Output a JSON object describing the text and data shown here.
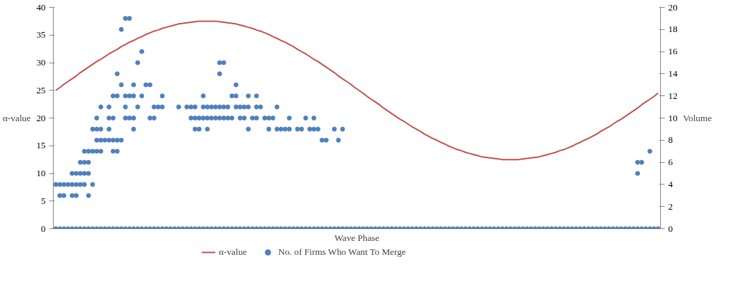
{
  "chart_data": {
    "type": "scatter",
    "xlabel": "Wave Phase",
    "ylabel": "α-value",
    "y2label": "Volume",
    "categories": [
      null,
      null,
      null,
      null,
      null,
      null,
      null,
      null,
      null,
      null,
      null,
      null,
      null,
      null,
      null,
      null,
      null,
      null,
      null,
      null,
      null,
      null,
      null,
      null,
      null,
      null,
      null,
      null,
      null,
      null,
      null,
      null,
      null,
      null,
      null,
      null,
      null,
      null,
      null,
      null,
      null,
      null,
      null,
      null,
      null,
      null,
      null,
      null,
      null,
      null,
      null,
      null,
      null,
      null,
      null,
      null,
      null,
      null,
      null,
      null,
      null,
      null,
      null,
      null,
      null,
      null,
      null,
      null,
      null,
      null,
      null,
      null,
      null,
      null,
      null,
      null,
      null,
      null,
      null,
      null,
      null,
      null,
      null,
      null,
      null,
      null,
      null,
      null,
      null,
      null,
      null,
      null,
      null,
      null,
      null,
      null,
      null,
      null,
      null,
      null,
      null,
      null,
      null,
      null,
      null,
      null,
      null,
      null,
      null,
      null,
      null,
      null,
      null,
      null,
      null,
      null,
      null,
      null,
      null,
      null,
      null,
      null,
      null,
      null,
      null,
      null,
      null,
      null,
      null,
      null,
      null,
      null,
      null,
      null,
      null,
      null,
      null,
      null,
      null,
      null,
      null,
      null,
      null,
      null,
      null,
      null,
      null,
      null
    ],
    "ylim": [
      0,
      40
    ],
    "yticks": [
      0,
      5,
      10,
      15,
      20,
      25,
      30,
      35,
      40
    ],
    "y2lim": [
      0,
      20
    ],
    "y2ticks": [
      0,
      2,
      4,
      6,
      8,
      10,
      12,
      14,
      16,
      18,
      20
    ],
    "grid": false,
    "legend": "bottom",
    "marker": "circle",
    "line_style": "solid",
    "series": [
      {
        "name": "α-value",
        "type": "line",
        "marker": "none",
        "color": "#c0504d",
        "values": [
          25.0,
          25.5,
          26.1,
          26.6,
          27.1,
          27.6,
          28.2,
          28.7,
          29.2,
          29.7,
          30.2,
          30.6,
          31.1,
          31.6,
          32.0,
          32.4,
          32.9,
          33.3,
          33.7,
          34.0,
          34.4,
          34.7,
          35.1,
          35.4,
          35.7,
          35.9,
          36.2,
          36.4,
          36.6,
          36.8,
          37.0,
          37.1,
          37.2,
          37.3,
          37.4,
          37.5,
          37.5,
          37.5,
          37.5,
          37.5,
          37.4,
          37.3,
          37.2,
          37.1,
          37.0,
          36.8,
          36.6,
          36.4,
          36.2,
          35.9,
          35.7,
          35.4,
          35.1,
          34.7,
          34.4,
          34.0,
          33.7,
          33.3,
          32.9,
          32.4,
          32.0,
          31.6,
          31.1,
          30.6,
          30.2,
          29.7,
          29.2,
          28.7,
          28.2,
          27.6,
          27.1,
          26.6,
          26.1,
          25.5,
          25.0,
          24.5,
          23.9,
          23.4,
          22.9,
          22.4,
          21.8,
          21.3,
          20.8,
          20.3,
          19.8,
          19.4,
          18.9,
          18.4,
          18.0,
          17.6,
          17.1,
          16.7,
          16.3,
          16.0,
          15.6,
          15.3,
          14.9,
          14.6,
          14.3,
          14.1,
          13.8,
          13.6,
          13.4,
          13.2,
          13.0,
          12.9,
          12.8,
          12.7,
          12.6,
          12.5,
          12.5,
          12.5,
          12.5,
          12.5,
          12.6,
          12.7,
          12.8,
          12.9,
          13.0,
          13.2,
          13.4,
          13.6,
          13.8,
          14.1,
          14.3,
          14.6,
          14.9,
          15.3,
          15.6,
          16.0,
          16.3,
          16.7,
          17.1,
          17.6,
          18.0,
          18.4,
          18.9,
          19.4,
          19.8,
          20.3,
          20.8,
          21.3,
          21.8,
          22.4,
          22.9,
          23.4,
          23.9,
          24.5
        ]
      },
      {
        "name": "No. of Firms Who Want To Merge",
        "axis": "y2",
        "color": "#4f81bd",
        "values": [
          0,
          0,
          0,
          0,
          0,
          0,
          0,
          0,
          0,
          0,
          0,
          0,
          0,
          0,
          0,
          0,
          0,
          0,
          0,
          0,
          0,
          0,
          0,
          0,
          0,
          0,
          0,
          0,
          0,
          0,
          0,
          0,
          0,
          0,
          0,
          0,
          0,
          0,
          0,
          0,
          0,
          0,
          0,
          0,
          0,
          0,
          0,
          0,
          0,
          0,
          0,
          0,
          0,
          0,
          0,
          0,
          0,
          0,
          0,
          0,
          0,
          0,
          0,
          0,
          0,
          0,
          0,
          0,
          0,
          0,
          0,
          0,
          0,
          0,
          0,
          0,
          0,
          0,
          0,
          0,
          0,
          0,
          0,
          0,
          0,
          0,
          0,
          0,
          0,
          0,
          0,
          0,
          0,
          0,
          0,
          0,
          0,
          0,
          0,
          0,
          0,
          0,
          0,
          0,
          0,
          0,
          0,
          0,
          0,
          0,
          0,
          0,
          0,
          0,
          0,
          0,
          0,
          0,
          0,
          0,
          0,
          0,
          0,
          0,
          0,
          0,
          0,
          0,
          0,
          0,
          0,
          0,
          0,
          0,
          0,
          0,
          0,
          0,
          0,
          0,
          0,
          0,
          0,
          0,
          0,
          0,
          0,
          0
        ]
      },
      {
        "axis": "y2",
        "color": "#4f81bd",
        "values": [
          4,
          3,
          3,
          4,
          3,
          3,
          4,
          4,
          3,
          4,
          7,
          7,
          8,
          8,
          7,
          7,
          8,
          10,
          10,
          9,
          11,
          12,
          13,
          10,
          10,
          11,
          11,
          null,
          null,
          null,
          11,
          null,
          11,
          10,
          9,
          9,
          10,
          9,
          10,
          10,
          10,
          10,
          10,
          10,
          11,
          10,
          10,
          9,
          10,
          10,
          11,
          10,
          9,
          10,
          9,
          9,
          9,
          9,
          null,
          9,
          9,
          10,
          9,
          9,
          9,
          8,
          8,
          null,
          9,
          8,
          9,
          null,
          null,
          null,
          null,
          null,
          null,
          null,
          null,
          null,
          null,
          null,
          null,
          null,
          null,
          null,
          null,
          null,
          null,
          null,
          null,
          null,
          null,
          null,
          null,
          null,
          null,
          null,
          null,
          null,
          null,
          null,
          null,
          null,
          null,
          null,
          null,
          null,
          null,
          null,
          null,
          null,
          null,
          null,
          null,
          null,
          null,
          null,
          null,
          null,
          null,
          null,
          null,
          null,
          null,
          null,
          null,
          null,
          null,
          null,
          null,
          null,
          null,
          null,
          null,
          null,
          null,
          null,
          null,
          null,
          null,
          null,
          5,
          6,
          null,
          7,
          null,
          null
        ]
      },
      {
        "axis": "y2",
        "color": "#4f81bd",
        "values": [
          null,
          4,
          4,
          null,
          4,
          4,
          5,
          5,
          5,
          7,
          8,
          8,
          null,
          9,
          8,
          8,
          13,
          11,
          12,
          10,
          15,
          16,
          null,
          13,
          11,
          null,
          12,
          null,
          null,
          null,
          null,
          null,
          null,
          11,
          10,
          10,
          11,
          10,
          11,
          11,
          11,
          11,
          11,
          12,
          12,
          11,
          11,
          11,
          null,
          11,
          null,
          null,
          10,
          null,
          11,
          null,
          null,
          10,
          null,
          null,
          null,
          null,
          null,
          10,
          null,
          null,
          null,
          null,
          null,
          null,
          null,
          null,
          null,
          null,
          null,
          null,
          null,
          null,
          null,
          null,
          null,
          null,
          null,
          null,
          null,
          null,
          null,
          null,
          null,
          null,
          null,
          null,
          null,
          null,
          null,
          null,
          null,
          null,
          null,
          null,
          null,
          null,
          null,
          null,
          null,
          null,
          null,
          null,
          null,
          null,
          null,
          null,
          null,
          null,
          null,
          null,
          null,
          null,
          null,
          null,
          null,
          null,
          null,
          null,
          null,
          null,
          null,
          null,
          null,
          null,
          null,
          null,
          null,
          null,
          null,
          null,
          null,
          null,
          null,
          null,
          null,
          null,
          6,
          null,
          null,
          null,
          null,
          null
        ]
      },
      {
        "axis": "y2",
        "color": "#4f81bd",
        "values": [
          null,
          null,
          null,
          null,
          5,
          5,
          6,
          6,
          6,
          9,
          9,
          9,
          null,
          10,
          10,
          12,
          18,
          12,
          19,
          12,
          null,
          null,
          null,
          null,
          null,
          null,
          null,
          null,
          null,
          null,
          null,
          null,
          null,
          null,
          11,
          null,
          12,
          11,
          null,
          null,
          14,
          15,
          null,
          null,
          13,
          null,
          null,
          12,
          null,
          12,
          null,
          null,
          null,
          null,
          null,
          null,
          null,
          null,
          null,
          null,
          null,
          null,
          null,
          null,
          null,
          null,
          null,
          null,
          null,
          null,
          null,
          null,
          null,
          null,
          null,
          null,
          null,
          null,
          null,
          null,
          null,
          null,
          null,
          null,
          null,
          null,
          null,
          null,
          null,
          null,
          null,
          null,
          null,
          null,
          null,
          null,
          null,
          null,
          null,
          null,
          null,
          null,
          null,
          null,
          null,
          null,
          null,
          null,
          null,
          null,
          null,
          null,
          null,
          null,
          null,
          null,
          null,
          null,
          null,
          null,
          null,
          null,
          null,
          null,
          null,
          null,
          null,
          null,
          null,
          null,
          null,
          null,
          null,
          null,
          null,
          null,
          null,
          null,
          null,
          null,
          null,
          null,
          null,
          null,
          null,
          null,
          null,
          null
        ]
      },
      {
        "axis": "y2",
        "color": "#4f81bd",
        "values": [
          null,
          null,
          null,
          null,
          null,
          null,
          null,
          7,
          7,
          null,
          10,
          11,
          null,
          11,
          12,
          14,
          null,
          19,
          null,
          13,
          null,
          null,
          null,
          null,
          null,
          null,
          null,
          null,
          null,
          null,
          null,
          null,
          null,
          null,
          null,
          null,
          null,
          null,
          null,
          null,
          15,
          null,
          null,
          null,
          null,
          null,
          null,
          null,
          null,
          null,
          null,
          null,
          null,
          null,
          null,
          null,
          null,
          null,
          null,
          null,
          null,
          null,
          null,
          null,
          null,
          null,
          null,
          null,
          null,
          null,
          null,
          null,
          null,
          null,
          null,
          null,
          null,
          null,
          null,
          null,
          null,
          null,
          null,
          null,
          null,
          null,
          null,
          null,
          null,
          null,
          null,
          null,
          null,
          null,
          null,
          null,
          null,
          null,
          null,
          null,
          null,
          null,
          null,
          null,
          null,
          null,
          null,
          null,
          null,
          null,
          null,
          null,
          null,
          null,
          null,
          null,
          null,
          null,
          null,
          null,
          null,
          null,
          null,
          null,
          null,
          null,
          null,
          null,
          null,
          null,
          null,
          null,
          null,
          null,
          null,
          null,
          null,
          null,
          null,
          null,
          null,
          null,
          null,
          null,
          null,
          null,
          null,
          null
        ]
      }
    ]
  }
}
